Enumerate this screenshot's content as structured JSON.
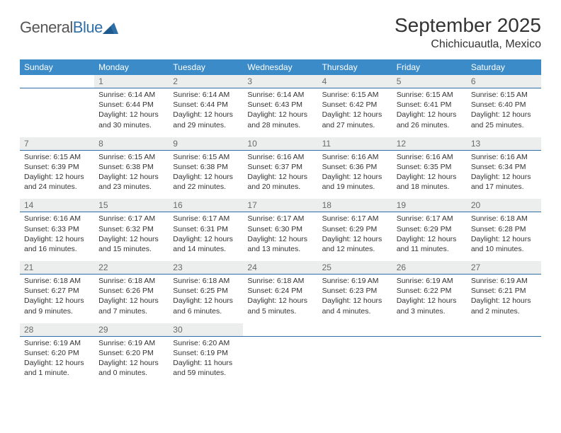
{
  "brand": {
    "part1": "General",
    "part2": "Blue"
  },
  "title": "September 2025",
  "location": "Chichicuautla, Mexico",
  "colors": {
    "header_bg": "#3b8bc9",
    "header_fg": "#ffffff",
    "daynum_bg": "#eceded",
    "daynum_fg": "#6a6a6a",
    "rule": "#2f6fa8",
    "logo_blue": "#2f6fa8",
    "text": "#333333"
  },
  "weekdays": [
    "Sunday",
    "Monday",
    "Tuesday",
    "Wednesday",
    "Thursday",
    "Friday",
    "Saturday"
  ],
  "weeks": [
    [
      {
        "n": "",
        "sunrise": "",
        "sunset": "",
        "daylight": ""
      },
      {
        "n": "1",
        "sunrise": "Sunrise: 6:14 AM",
        "sunset": "Sunset: 6:44 PM",
        "daylight": "Daylight: 12 hours and 30 minutes."
      },
      {
        "n": "2",
        "sunrise": "Sunrise: 6:14 AM",
        "sunset": "Sunset: 6:44 PM",
        "daylight": "Daylight: 12 hours and 29 minutes."
      },
      {
        "n": "3",
        "sunrise": "Sunrise: 6:14 AM",
        "sunset": "Sunset: 6:43 PM",
        "daylight": "Daylight: 12 hours and 28 minutes."
      },
      {
        "n": "4",
        "sunrise": "Sunrise: 6:15 AM",
        "sunset": "Sunset: 6:42 PM",
        "daylight": "Daylight: 12 hours and 27 minutes."
      },
      {
        "n": "5",
        "sunrise": "Sunrise: 6:15 AM",
        "sunset": "Sunset: 6:41 PM",
        "daylight": "Daylight: 12 hours and 26 minutes."
      },
      {
        "n": "6",
        "sunrise": "Sunrise: 6:15 AM",
        "sunset": "Sunset: 6:40 PM",
        "daylight": "Daylight: 12 hours and 25 minutes."
      }
    ],
    [
      {
        "n": "7",
        "sunrise": "Sunrise: 6:15 AM",
        "sunset": "Sunset: 6:39 PM",
        "daylight": "Daylight: 12 hours and 24 minutes."
      },
      {
        "n": "8",
        "sunrise": "Sunrise: 6:15 AM",
        "sunset": "Sunset: 6:38 PM",
        "daylight": "Daylight: 12 hours and 23 minutes."
      },
      {
        "n": "9",
        "sunrise": "Sunrise: 6:15 AM",
        "sunset": "Sunset: 6:38 PM",
        "daylight": "Daylight: 12 hours and 22 minutes."
      },
      {
        "n": "10",
        "sunrise": "Sunrise: 6:16 AM",
        "sunset": "Sunset: 6:37 PM",
        "daylight": "Daylight: 12 hours and 20 minutes."
      },
      {
        "n": "11",
        "sunrise": "Sunrise: 6:16 AM",
        "sunset": "Sunset: 6:36 PM",
        "daylight": "Daylight: 12 hours and 19 minutes."
      },
      {
        "n": "12",
        "sunrise": "Sunrise: 6:16 AM",
        "sunset": "Sunset: 6:35 PM",
        "daylight": "Daylight: 12 hours and 18 minutes."
      },
      {
        "n": "13",
        "sunrise": "Sunrise: 6:16 AM",
        "sunset": "Sunset: 6:34 PM",
        "daylight": "Daylight: 12 hours and 17 minutes."
      }
    ],
    [
      {
        "n": "14",
        "sunrise": "Sunrise: 6:16 AM",
        "sunset": "Sunset: 6:33 PM",
        "daylight": "Daylight: 12 hours and 16 minutes."
      },
      {
        "n": "15",
        "sunrise": "Sunrise: 6:17 AM",
        "sunset": "Sunset: 6:32 PM",
        "daylight": "Daylight: 12 hours and 15 minutes."
      },
      {
        "n": "16",
        "sunrise": "Sunrise: 6:17 AM",
        "sunset": "Sunset: 6:31 PM",
        "daylight": "Daylight: 12 hours and 14 minutes."
      },
      {
        "n": "17",
        "sunrise": "Sunrise: 6:17 AM",
        "sunset": "Sunset: 6:30 PM",
        "daylight": "Daylight: 12 hours and 13 minutes."
      },
      {
        "n": "18",
        "sunrise": "Sunrise: 6:17 AM",
        "sunset": "Sunset: 6:29 PM",
        "daylight": "Daylight: 12 hours and 12 minutes."
      },
      {
        "n": "19",
        "sunrise": "Sunrise: 6:17 AM",
        "sunset": "Sunset: 6:29 PM",
        "daylight": "Daylight: 12 hours and 11 minutes."
      },
      {
        "n": "20",
        "sunrise": "Sunrise: 6:18 AM",
        "sunset": "Sunset: 6:28 PM",
        "daylight": "Daylight: 12 hours and 10 minutes."
      }
    ],
    [
      {
        "n": "21",
        "sunrise": "Sunrise: 6:18 AM",
        "sunset": "Sunset: 6:27 PM",
        "daylight": "Daylight: 12 hours and 9 minutes."
      },
      {
        "n": "22",
        "sunrise": "Sunrise: 6:18 AM",
        "sunset": "Sunset: 6:26 PM",
        "daylight": "Daylight: 12 hours and 7 minutes."
      },
      {
        "n": "23",
        "sunrise": "Sunrise: 6:18 AM",
        "sunset": "Sunset: 6:25 PM",
        "daylight": "Daylight: 12 hours and 6 minutes."
      },
      {
        "n": "24",
        "sunrise": "Sunrise: 6:18 AM",
        "sunset": "Sunset: 6:24 PM",
        "daylight": "Daylight: 12 hours and 5 minutes."
      },
      {
        "n": "25",
        "sunrise": "Sunrise: 6:19 AM",
        "sunset": "Sunset: 6:23 PM",
        "daylight": "Daylight: 12 hours and 4 minutes."
      },
      {
        "n": "26",
        "sunrise": "Sunrise: 6:19 AM",
        "sunset": "Sunset: 6:22 PM",
        "daylight": "Daylight: 12 hours and 3 minutes."
      },
      {
        "n": "27",
        "sunrise": "Sunrise: 6:19 AM",
        "sunset": "Sunset: 6:21 PM",
        "daylight": "Daylight: 12 hours and 2 minutes."
      }
    ],
    [
      {
        "n": "28",
        "sunrise": "Sunrise: 6:19 AM",
        "sunset": "Sunset: 6:20 PM",
        "daylight": "Daylight: 12 hours and 1 minute."
      },
      {
        "n": "29",
        "sunrise": "Sunrise: 6:19 AM",
        "sunset": "Sunset: 6:20 PM",
        "daylight": "Daylight: 12 hours and 0 minutes."
      },
      {
        "n": "30",
        "sunrise": "Sunrise: 6:20 AM",
        "sunset": "Sunset: 6:19 PM",
        "daylight": "Daylight: 11 hours and 59 minutes."
      },
      {
        "n": "",
        "sunrise": "",
        "sunset": "",
        "daylight": ""
      },
      {
        "n": "",
        "sunrise": "",
        "sunset": "",
        "daylight": ""
      },
      {
        "n": "",
        "sunrise": "",
        "sunset": "",
        "daylight": ""
      },
      {
        "n": "",
        "sunrise": "",
        "sunset": "",
        "daylight": ""
      }
    ]
  ]
}
